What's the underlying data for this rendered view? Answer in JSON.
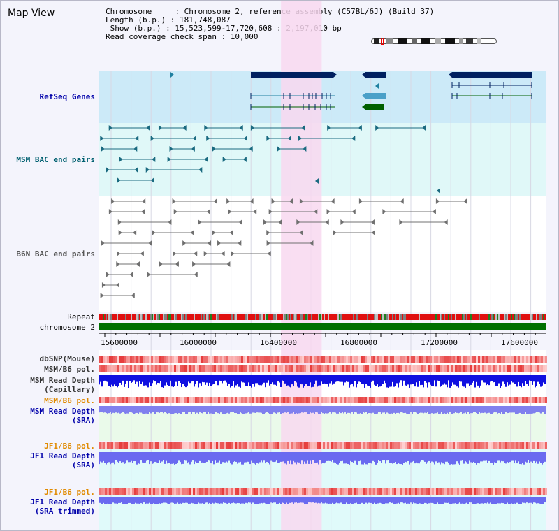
{
  "header": {
    "title": "Map View",
    "info_rows": [
      "Chromosome     : Chromosome 2, reference assembly (C57BL/6J) (Build 37)",
      "Length (b.p.) : 181,748,087",
      " Show (b.p.) : 15,523,599-17,720,608 : 2,197,010 bp",
      "Read coverage check span : 10,000"
    ]
  },
  "tracks": {
    "refseq": "RefSeq Genes",
    "msm_bac": "MSM BAC end pairs",
    "b6n_bac": "B6N BAC end pairs",
    "repeat": "Repeat",
    "chromosome": "chromosome 2",
    "dbsnp": "dbSNP(Mouse)",
    "msm_pol": "MSM/B6 pol.",
    "msm_depth_cap": [
      "MSM Read Depth",
      "(Capillary)"
    ],
    "msm_pol2": "MSM/B6 pol.",
    "msm_depth_sra": [
      "MSM Read Depth",
      "(SRA)"
    ],
    "jf1_pol": "JF1/B6 pol.",
    "jf1_depth_sra": [
      "JF1 Read Depth",
      "(SRA)"
    ],
    "jf1_pol2": "JF1/B6 pol.",
    "jf1_depth_trim": [
      "JF1 Read Depth",
      "(SRA trimmed)"
    ]
  },
  "axis": {
    "range_bp": [
      15523599,
      17720608
    ],
    "ticks": [
      "15600000",
      "16000000",
      "16400000",
      "16800000",
      "17200000",
      "17600000"
    ]
  },
  "highlight": {
    "start_bp": 16420000,
    "end_bp": 16620000
  },
  "colors": {
    "refseq_bg": "#cceaf8",
    "msm_bg": "#e0f8f8",
    "highlight": "#f8d8f0",
    "gene_dark": "#002060",
    "gene_teal": "#2080a0",
    "gene_green": "#006000",
    "msm_feature": "#1a6a80",
    "b6n_feature": "#707070",
    "chromosome_bar": "#007000",
    "depth_blue": "#1010e0",
    "depth_light": "#6a6af0"
  }
}
